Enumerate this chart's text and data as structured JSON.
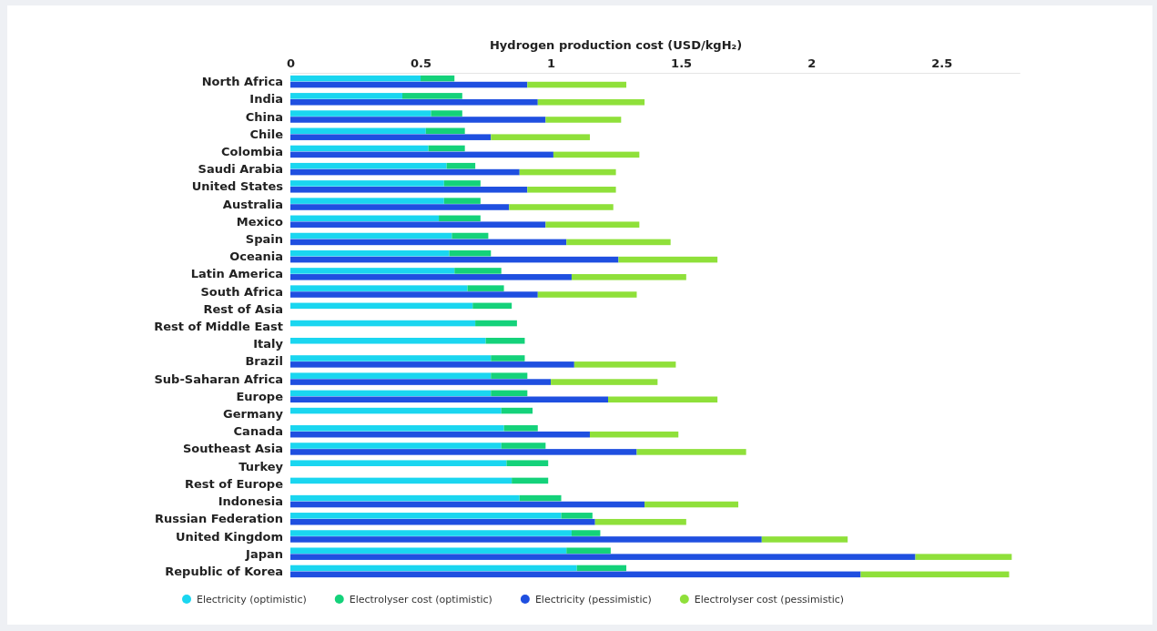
{
  "chart_data": [
    {
      "type": "bar",
      "orientation": "horizontal",
      "stacked": true,
      "xlabel": "Hydrogen production cost (USD/kgH₂)",
      "xlim": [
        0,
        2.8
      ],
      "xticks": [
        0,
        0.5,
        1,
        1.5,
        2,
        2.5
      ],
      "legend": "bottom",
      "grid": false,
      "categories": [
        "North Africa",
        "India",
        "China",
        "Chile",
        "Colombia",
        "Saudi Arabia",
        "United States",
        "Australia",
        "Mexico",
        "Spain",
        "Oceania",
        "Latin America",
        "South Africa",
        "Rest of Asia",
        "Rest of Middle East",
        "Italy",
        "Brazil",
        "Sub-Saharan Africa",
        "Europe",
        "Germany",
        "Canada",
        "Southeast Asia",
        "Turkey",
        "Rest of Europe",
        "Indonesia",
        "Russian Federation",
        "United Kingdom",
        "Japan",
        "Republic of Korea"
      ],
      "series": [
        {
          "name": "Electricity (optimistic)",
          "color": "#1ad6f0",
          "values": [
            0.5,
            0.43,
            0.54,
            0.52,
            0.53,
            0.6,
            0.59,
            0.59,
            0.57,
            0.62,
            0.61,
            0.63,
            0.68,
            0.7,
            0.71,
            0.75,
            0.77,
            0.77,
            0.77,
            0.81,
            0.82,
            0.81,
            0.83,
            0.85,
            0.88,
            1.04,
            1.08,
            1.06,
            1.1
          ]
        },
        {
          "name": "Electrolyser cost (optimistic)",
          "color": "#14d27a",
          "values": [
            0.13,
            0.23,
            0.12,
            0.15,
            0.14,
            0.11,
            0.14,
            0.14,
            0.16,
            0.14,
            0.16,
            0.18,
            0.14,
            0.15,
            0.16,
            0.15,
            0.13,
            0.14,
            0.14,
            0.12,
            0.13,
            0.17,
            0.16,
            0.14,
            0.16,
            0.12,
            0.11,
            0.17,
            0.19
          ]
        }
      ]
    },
    {
      "type": "bar",
      "orientation": "horizontal",
      "stacked": true,
      "xlim": [
        0,
        2.8
      ],
      "legend": "bottom",
      "grid": false,
      "categories": [
        null,
        null,
        null,
        null,
        null,
        null,
        null,
        null,
        null,
        null,
        null,
        null,
        null,
        null,
        null,
        null,
        null,
        null,
        null,
        null,
        null,
        null,
        null,
        null,
        null,
        null,
        null,
        null,
        null
      ],
      "series": [
        {
          "name": "Electricity (pessimistic)",
          "color": "#1f4fe0",
          "values": [
            0.91,
            0.95,
            0.98,
            0.77,
            1.01,
            0.88,
            0.91,
            0.84,
            0.98,
            1.06,
            1.26,
            1.08,
            0.95,
            null,
            null,
            null,
            1.09,
            1.0,
            1.22,
            null,
            1.15,
            1.33,
            null,
            null,
            1.36,
            1.17,
            1.81,
            2.4,
            2.19
          ]
        },
        {
          "name": "Electrolyser cost (pessimistic)",
          "color": "#8fe03a",
          "values": [
            0.38,
            0.41,
            0.29,
            0.38,
            0.33,
            0.37,
            0.34,
            0.4,
            0.36,
            0.4,
            0.38,
            0.44,
            0.38,
            null,
            null,
            null,
            0.39,
            0.41,
            0.42,
            null,
            0.34,
            0.42,
            null,
            null,
            0.36,
            0.35,
            0.33,
            0.37,
            0.57
          ]
        }
      ]
    }
  ]
}
